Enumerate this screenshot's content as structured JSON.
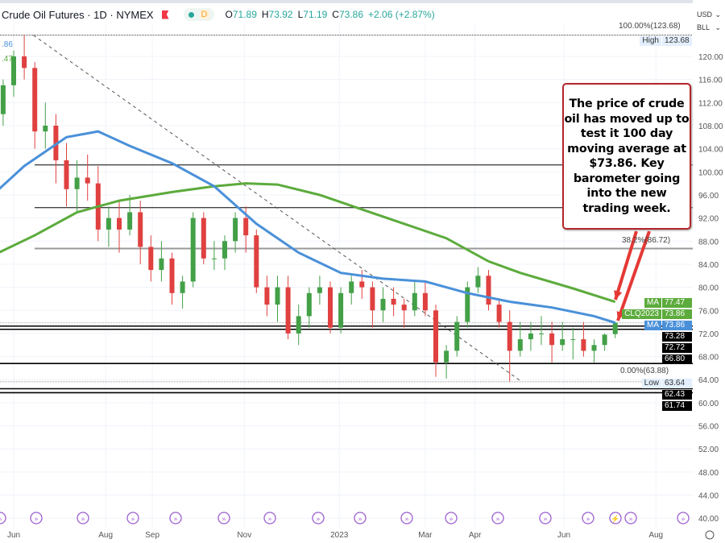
{
  "header": {
    "symbol": "Crude Oil Futures · 1D · NYMEX",
    "interval_badge": "D",
    "open_label": "O",
    "open": "71.89",
    "high_label": "H",
    "high": "73.92",
    "low_label": "L",
    "low": "71.19",
    "close_label": "C",
    "close": "73.86",
    "change": "+2.06 (+2.87%)"
  },
  "selectors": {
    "currency": "USD",
    "unit": "BLL"
  },
  "legend_fragments": {
    "ma100": ".86",
    "ma200": ".47"
  },
  "annotation": "The price of crude oil has moved up to test it 100 day moving average at $73.86.  Key barometer going into the new trading week.",
  "fib_labels": {
    "top": "100.00%(123.68)",
    "mid": "38.2%(86.72)",
    "bottom": "0.00%(63.88)"
  },
  "price_labels": [
    {
      "tag": "High",
      "value": "123.68",
      "style": "light"
    },
    {
      "tag": "MA",
      "value": "77.47",
      "style": "green"
    },
    {
      "tag": "CLQ2023",
      "value": "73.86",
      "style": "green"
    },
    {
      "tag": "MA",
      "value": "73.86",
      "style": "blue"
    },
    {
      "tag": "",
      "value": "73.28",
      "style": "black"
    },
    {
      "tag": "",
      "value": "72.72",
      "style": "black"
    },
    {
      "tag": "",
      "value": "66.80",
      "style": "black"
    },
    {
      "tag": "Low",
      "value": "63.64",
      "style": "light"
    },
    {
      "tag": "",
      "value": "62.43",
      "style": "black"
    },
    {
      "tag": "",
      "value": "61.74",
      "style": "black"
    }
  ],
  "colors": {
    "up": "#43a047",
    "down": "#e04040",
    "ma100": "#4a90d9",
    "ma200": "#5cab3c",
    "annotation_border": "#b3262b",
    "arrow": "#e53935",
    "event_icon": "#9c5fd1"
  },
  "chart_data": {
    "type": "candlestick",
    "title": "Crude Oil Futures · 1D · NYMEX",
    "ylim": [
      38,
      125
    ],
    "y_ticks": [
      120,
      116,
      112,
      108,
      104,
      100,
      96,
      92,
      88,
      84,
      80,
      76,
      72,
      68,
      64,
      60,
      56,
      52,
      48,
      44,
      40
    ],
    "x_ticks": [
      [
        "Jun",
        "2022-06-01"
      ],
      [
        "Aug",
        "2022-08-01"
      ],
      [
        "Sep",
        "2022-09-01"
      ],
      [
        "Nov",
        "2022-11-01"
      ],
      [
        "2023",
        "2023-01-03"
      ],
      [
        "Mar",
        "2023-03-01"
      ],
      [
        "Apr",
        "2023-04-03"
      ],
      [
        "Jun",
        "2023-06-01"
      ],
      [
        "Aug",
        "2023-08-01"
      ]
    ],
    "grid": true,
    "ohlc_weekly": [
      [
        "2022-05-18",
        104,
        111,
        102,
        110
      ],
      [
        "2022-05-25",
        110,
        116,
        108,
        115
      ],
      [
        "2022-06-01",
        115,
        121,
        113,
        120
      ],
      [
        "2022-06-08",
        120,
        123.68,
        116,
        118
      ],
      [
        "2022-06-15",
        118,
        119,
        104,
        107
      ],
      [
        "2022-06-22",
        107,
        112,
        104,
        108
      ],
      [
        "2022-06-29",
        108,
        110,
        98,
        102
      ],
      [
        "2022-07-06",
        102,
        105,
        94,
        97
      ],
      [
        "2022-07-13",
        97,
        102,
        93,
        99
      ],
      [
        "2022-07-20",
        99,
        103,
        95,
        98
      ],
      [
        "2022-07-27",
        98,
        101,
        88,
        90
      ],
      [
        "2022-08-03",
        90,
        94,
        87,
        92
      ],
      [
        "2022-08-10",
        92,
        95,
        86,
        90
      ],
      [
        "2022-08-17",
        90,
        96,
        89,
        93
      ],
      [
        "2022-08-24",
        93,
        95,
        84,
        87
      ],
      [
        "2022-08-31",
        87,
        89,
        81,
        83
      ],
      [
        "2022-09-07",
        83,
        88,
        81,
        85
      ],
      [
        "2022-09-14",
        85,
        86,
        77,
        79
      ],
      [
        "2022-09-21",
        79,
        82,
        76.3,
        81
      ],
      [
        "2022-09-28",
        81,
        93,
        80,
        92
      ],
      [
        "2022-10-05",
        92,
        93,
        84,
        85
      ],
      [
        "2022-10-12",
        85,
        88,
        83,
        85
      ],
      [
        "2022-10-19",
        85,
        89,
        83,
        88
      ],
      [
        "2022-10-26",
        88,
        93,
        86,
        92
      ],
      [
        "2022-11-02",
        92,
        94,
        86,
        89
      ],
      [
        "2022-11-09",
        89,
        90,
        79,
        80
      ],
      [
        "2022-11-16",
        80,
        82,
        75,
        77
      ],
      [
        "2022-11-23",
        77,
        82,
        74,
        80
      ],
      [
        "2022-11-30",
        80,
        82,
        71,
        72
      ],
      [
        "2022-12-07",
        72,
        77,
        70,
        75
      ],
      [
        "2022-12-14",
        75,
        80,
        73,
        79
      ],
      [
        "2022-12-21",
        79,
        82,
        77,
        80
      ],
      [
        "2022-12-28",
        80,
        81,
        72,
        73
      ],
      [
        "2023-01-04",
        73,
        80,
        72,
        79
      ],
      [
        "2023-01-11",
        79,
        82,
        77,
        81
      ],
      [
        "2023-01-18",
        81,
        83,
        78,
        80
      ],
      [
        "2023-01-25",
        80,
        81,
        73,
        76
      ],
      [
        "2023-02-01",
        76,
        80,
        74,
        78
      ],
      [
        "2023-02-08",
        78,
        80,
        75,
        77
      ],
      [
        "2023-02-15",
        77,
        78,
        73,
        76
      ],
      [
        "2023-02-22",
        76,
        81,
        75,
        79
      ],
      [
        "2023-03-01",
        79,
        81,
        75,
        76
      ],
      [
        "2023-03-08",
        76,
        77,
        64.5,
        67
      ],
      [
        "2023-03-15",
        67,
        70,
        64.2,
        69
      ],
      [
        "2023-03-22",
        69,
        75,
        68,
        74
      ],
      [
        "2023-03-29",
        74,
        81,
        73,
        80
      ],
      [
        "2023-04-05",
        80,
        83.5,
        79,
        82
      ],
      [
        "2023-04-12",
        82,
        83,
        76,
        77
      ],
      [
        "2023-04-19",
        77,
        78,
        73,
        74
      ],
      [
        "2023-04-26",
        74,
        76,
        63.64,
        69
      ],
      [
        "2023-05-03",
        69,
        74,
        68,
        71
      ],
      [
        "2023-05-10",
        71,
        74,
        69,
        72
      ],
      [
        "2023-05-17",
        72,
        75,
        70,
        72
      ],
      [
        "2023-05-24",
        72,
        74,
        67,
        70
      ],
      [
        "2023-05-31",
        70,
        74,
        69,
        71
      ],
      [
        "2023-06-07",
        71,
        73,
        67.5,
        71
      ],
      [
        "2023-06-14",
        71,
        74,
        68,
        69
      ],
      [
        "2023-06-21",
        69,
        71,
        67,
        70
      ],
      [
        "2023-06-28",
        70,
        72,
        69,
        71.8
      ],
      [
        "2023-07-05",
        71.89,
        73.92,
        71.19,
        73.86
      ]
    ],
    "ma100": [
      [
        "2022-05-18",
        96
      ],
      [
        "2022-06-08",
        101
      ],
      [
        "2022-07-06",
        106
      ],
      [
        "2022-07-27",
        107
      ],
      [
        "2022-08-17",
        104.5
      ],
      [
        "2022-09-14",
        101.5
      ],
      [
        "2022-10-12",
        97.5
      ],
      [
        "2022-11-09",
        91
      ],
      [
        "2022-12-07",
        86
      ],
      [
        "2023-01-04",
        82.5
      ],
      [
        "2023-02-01",
        81.5
      ],
      [
        "2023-03-01",
        81
      ],
      [
        "2023-03-29",
        79
      ],
      [
        "2023-04-26",
        77.5
      ],
      [
        "2023-05-24",
        76.5
      ],
      [
        "2023-06-21",
        75
      ],
      [
        "2023-07-05",
        73.86
      ]
    ],
    "ma200": [
      [
        "2022-05-18",
        85.5
      ],
      [
        "2022-06-15",
        89
      ],
      [
        "2022-07-13",
        93
      ],
      [
        "2022-08-10",
        95
      ],
      [
        "2022-09-14",
        96.5
      ],
      [
        "2022-10-12",
        97.5
      ],
      [
        "2022-11-02",
        98
      ],
      [
        "2022-11-23",
        97.8
      ],
      [
        "2022-12-21",
        96
      ],
      [
        "2023-01-18",
        93.5
      ],
      [
        "2023-02-15",
        91
      ],
      [
        "2023-03-15",
        88.5
      ],
      [
        "2023-04-12",
        84.5
      ],
      [
        "2023-05-03",
        82.5
      ],
      [
        "2023-06-07",
        79.8
      ],
      [
        "2023-07-05",
        77.47
      ]
    ],
    "horizontal_levels": [
      101.2,
      93.8,
      73.28,
      72.72,
      66.8,
      62.43,
      61.74
    ],
    "fib_levels": [
      123.68,
      86.72,
      63.88
    ],
    "trendline": [
      [
        "2022-06-14",
        123.68
      ],
      [
        "2023-05-04",
        63.64
      ]
    ],
    "high": 123.68,
    "low": 63.64,
    "current": 73.86
  }
}
